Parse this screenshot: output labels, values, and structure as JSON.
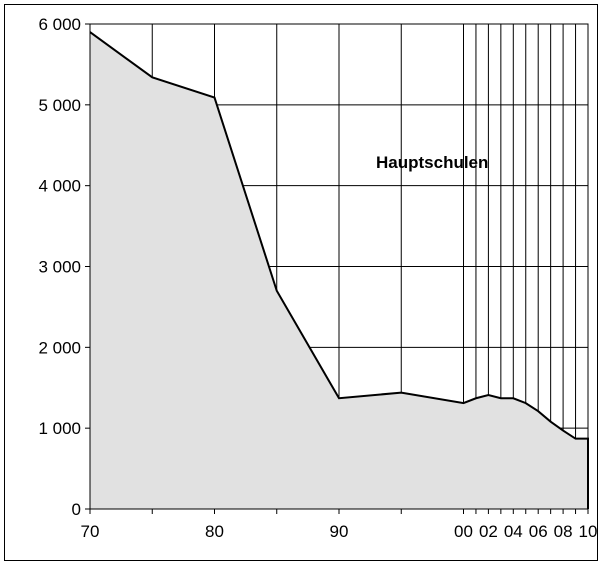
{
  "chart_data": {
    "type": "area",
    "x": [
      "70",
      "75",
      "80",
      "85",
      "90",
      "95",
      "00",
      "01",
      "02",
      "03",
      "04",
      "05",
      "06",
      "07",
      "08",
      "09",
      "10"
    ],
    "x_numeric": [
      1970,
      1975,
      1980,
      1985,
      1990,
      1995,
      2000,
      2001,
      2002,
      2003,
      2004,
      2005,
      2006,
      2007,
      2008,
      2009,
      2010
    ],
    "series": [
      {
        "values": [
          5900,
          5340,
          5090,
          2700,
          1370,
          1440,
          1310,
          1370,
          1410,
          1370,
          1370,
          1310,
          1210,
          1080,
          970,
          870,
          870
        ]
      }
    ],
    "x_ticks": [
      "70",
      "80",
      "90",
      "00",
      "02",
      "04",
      "06",
      "08",
      "10"
    ],
    "y_ticks": [
      "0",
      "1 000",
      "2 000",
      "3 000",
      "4 000",
      "5 000",
      "6 000"
    ],
    "ylim": [
      0,
      6000
    ],
    "annotation": "Hauptschulen",
    "grid": true,
    "fill_color": "#e1e1e1",
    "line_color": "#000000"
  }
}
